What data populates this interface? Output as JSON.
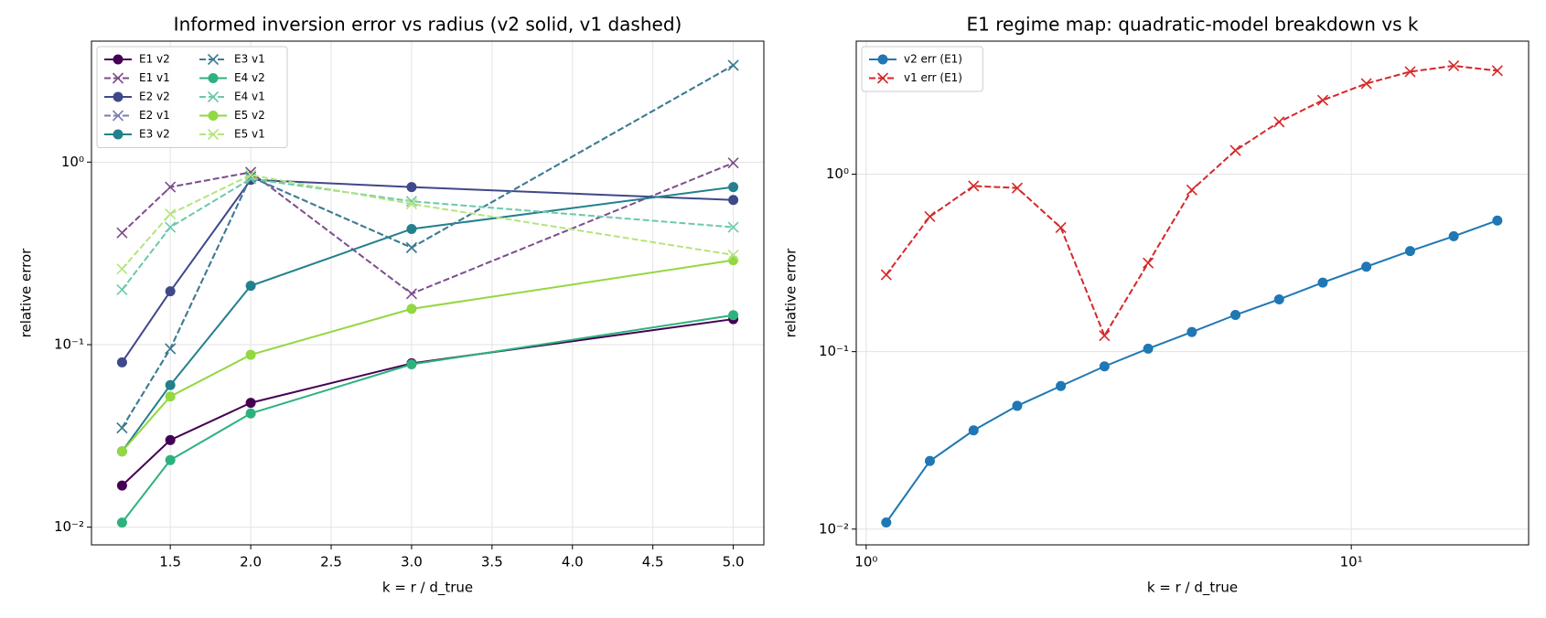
{
  "chart_data": [
    {
      "type": "line",
      "title": "Informed inversion error vs radius (v2 solid, v1 dashed)",
      "xlabel": "k = r / d_true",
      "ylabel": "relative error",
      "xscale": "linear",
      "yscale": "log",
      "grid": true,
      "legend": "upper left",
      "legend_columns": 2,
      "xlim": [
        1.01,
        5.19
      ],
      "ylim": [
        0.008,
        4.6
      ],
      "xticks": [
        1.5,
        {
          "value": 2,
          "label": "2.0"
        },
        2.5,
        {
          "value": 3,
          "label": "3.0"
        },
        3.5,
        {
          "value": 4,
          "label": "4.0"
        },
        4.5,
        {
          "value": 5,
          "label": "5.0"
        }
      ],
      "yticks": [
        {
          "value": 0.01,
          "label": "10⁻²"
        },
        {
          "value": 0.1,
          "label": "10⁻¹"
        },
        {
          "value": 1,
          "label": "10⁰"
        }
      ],
      "x": [
        1.2,
        1.5,
        2.0,
        3.0,
        5.0
      ],
      "series": [
        {
          "name": "E1 v2",
          "color": "#440154",
          "marker": "o",
          "linestyle": "solid",
          "values": [
            0.0169,
            0.03,
            0.048,
            0.079,
            0.138
          ]
        },
        {
          "name": "E1 v1",
          "color": "#7c4d8c",
          "marker": "x",
          "linestyle": "dashed",
          "values": [
            0.41,
            0.73,
            0.88,
            0.19,
            0.99
          ]
        },
        {
          "name": "E2 v2",
          "color": "#3f4889",
          "marker": "o",
          "linestyle": "solid",
          "values": [
            0.08,
            0.196,
            0.8,
            0.73,
            0.62
          ]
        },
        {
          "name": "E2 v1",
          "color": "#7a7eaf",
          "marker": "x",
          "linestyle": "dashed",
          "values": [
            0.035,
            0.095,
            0.83,
            0.34,
            3.39
          ]
        },
        {
          "name": "E3 v2",
          "color": "#23808d",
          "marker": "o",
          "linestyle": "solid",
          "values": [
            0.026,
            0.06,
            0.21,
            0.43,
            0.73
          ]
        },
        {
          "name": "E3 v1",
          "color": "#3d7d92",
          "marker": "x",
          "linestyle": "dashed",
          "values": [
            0.035,
            0.095,
            0.83,
            0.34,
            3.39
          ]
        },
        {
          "name": "E4 v2",
          "color": "#2db27d",
          "marker": "o",
          "linestyle": "solid",
          "values": [
            0.0106,
            0.0233,
            0.042,
            0.078,
            0.145
          ]
        },
        {
          "name": "E4 v1",
          "color": "#6cc9a9",
          "marker": "x",
          "linestyle": "dashed",
          "values": [
            0.2,
            0.44,
            0.81,
            0.61,
            0.44
          ]
        },
        {
          "name": "E5 v2",
          "color": "#93d741",
          "marker": "o",
          "linestyle": "solid",
          "values": [
            0.026,
            0.052,
            0.088,
            0.157,
            0.29
          ]
        },
        {
          "name": "E5 v1",
          "color": "#b5e47d",
          "marker": "x",
          "linestyle": "dashed",
          "values": [
            0.26,
            0.52,
            0.85,
            0.59,
            0.31
          ]
        }
      ]
    },
    {
      "type": "line",
      "title": "E1 regime map: quadratic-model breakdown vs k",
      "xlabel": "k = r / d_true",
      "ylabel": "relative error",
      "xscale": "log",
      "yscale": "log",
      "grid": true,
      "legend": "upper left",
      "legend_columns": 1,
      "xlim": [
        0.954,
        23.2
      ],
      "ylim": [
        0.00815,
        5.62
      ],
      "xticks": [
        {
          "value": 1,
          "label": "10⁰"
        },
        {
          "value": 10,
          "label": "10¹"
        }
      ],
      "yticks": [
        {
          "value": 0.01,
          "label": "10⁻²"
        },
        {
          "value": 0.1,
          "label": "10⁻¹"
        },
        {
          "value": 1,
          "label": "10⁰"
        }
      ],
      "x": [
        1.1,
        1.353,
        1.665,
        2.048,
        2.519,
        3.099,
        3.813,
        4.691,
        5.77,
        7.099,
        8.733,
        10.74,
        13.22,
        16.26,
        20.0
      ],
      "series": [
        {
          "name": "v2 err (E1)",
          "color": "#1f77b4",
          "marker": "o",
          "linestyle": "solid",
          "values": [
            0.0109,
            0.0242,
            0.036,
            0.0495,
            0.064,
            0.0826,
            0.104,
            0.129,
            0.161,
            0.197,
            0.245,
            0.301,
            0.369,
            0.447,
            0.548
          ]
        },
        {
          "name": "v1 err (E1)",
          "color": "#d62728",
          "marker": "x",
          "linestyle": "dashed",
          "values": [
            0.271,
            0.577,
            0.858,
            0.836,
            0.5,
            0.123,
            0.316,
            0.815,
            1.36,
            1.97,
            2.61,
            3.24,
            3.78,
            4.08,
            3.83
          ]
        }
      ]
    }
  ]
}
